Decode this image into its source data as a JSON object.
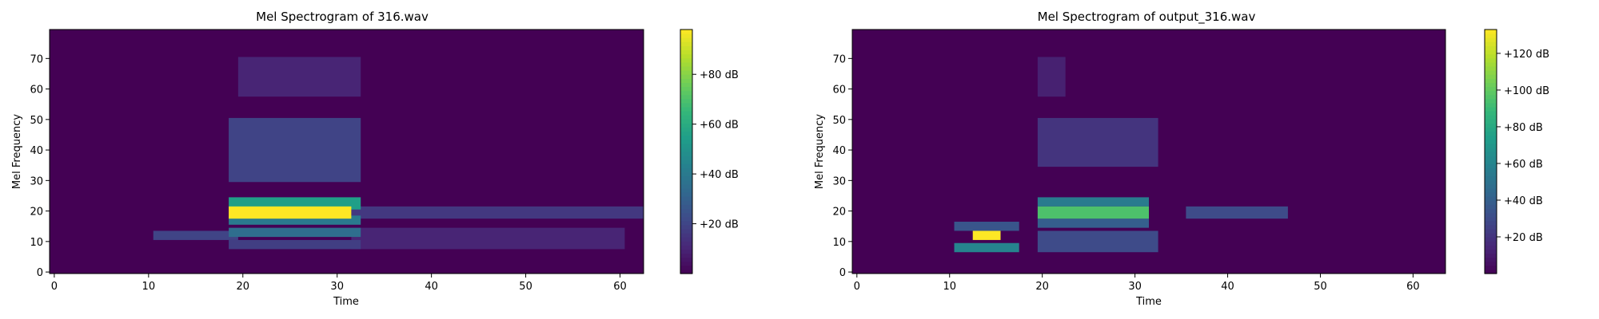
{
  "chart_data": [
    {
      "type": "heatmap",
      "title": "Mel Spectrogram of 316.wav",
      "xlabel": "Time",
      "ylabel": "Mel Frequency",
      "xlim": [
        -0.5,
        62.5
      ],
      "ylim": [
        -0.5,
        79.5
      ],
      "xticks": [
        0,
        10,
        20,
        30,
        40,
        50,
        60
      ],
      "yticks": [
        0,
        10,
        20,
        30,
        40,
        50,
        60,
        70
      ],
      "colorbar": {
        "min": 0,
        "max": 98,
        "ticks": [
          20,
          40,
          60,
          80
        ],
        "tick_labels": [
          "+20 dB",
          "+40 dB",
          "+60 dB",
          "+80 dB"
        ],
        "colormap": "viridis"
      },
      "hotspots": [
        {
          "t0": 19,
          "t1": 31,
          "m0": 18,
          "m1": 21,
          "value": 98
        },
        {
          "t0": 19,
          "t1": 32,
          "m0": 21,
          "m1": 24,
          "value": 55
        },
        {
          "t0": 19,
          "t1": 32,
          "m0": 16,
          "m1": 18,
          "value": 40
        },
        {
          "t0": 19,
          "t1": 32,
          "m0": 12,
          "m1": 14,
          "value": 35
        },
        {
          "t0": 11,
          "t1": 19,
          "m0": 11,
          "m1": 13,
          "value": 20
        },
        {
          "t0": 19,
          "t1": 32,
          "m0": 8,
          "m1": 10,
          "value": 18
        },
        {
          "t0": 19,
          "t1": 32,
          "m0": 30,
          "m1": 50,
          "value": 20
        },
        {
          "t0": 20,
          "t1": 32,
          "m0": 58,
          "m1": 70,
          "value": 10
        },
        {
          "t0": 32,
          "t1": 62,
          "m0": 18,
          "m1": 21,
          "value": 16
        },
        {
          "t0": 32,
          "t1": 60,
          "m0": 8,
          "m1": 14,
          "value": 10
        }
      ]
    },
    {
      "type": "heatmap",
      "title": "Mel Spectrogram of output_316.wav",
      "xlabel": "Time",
      "ylabel": "Mel Frequency",
      "xlim": [
        -0.5,
        63.5
      ],
      "ylim": [
        -0.5,
        79.5
      ],
      "xticks": [
        0,
        10,
        20,
        30,
        40,
        50,
        60
      ],
      "yticks": [
        0,
        10,
        20,
        30,
        40,
        50,
        60,
        70
      ],
      "colorbar": {
        "min": 0,
        "max": 133,
        "ticks": [
          20,
          40,
          60,
          80,
          100,
          120
        ],
        "tick_labels": [
          "+20 dB",
          "+40 dB",
          "+60 dB",
          "+80 dB",
          "+100 dB",
          "+120 dB"
        ],
        "colormap": "viridis"
      },
      "hotspots": [
        {
          "t0": 13,
          "t1": 15,
          "m0": 11,
          "m1": 13,
          "value": 133
        },
        {
          "t0": 11,
          "t1": 17,
          "m0": 7,
          "m1": 9,
          "value": 60
        },
        {
          "t0": 11,
          "t1": 17,
          "m0": 14,
          "m1": 16,
          "value": 35
        },
        {
          "t0": 20,
          "t1": 31,
          "m0": 18,
          "m1": 21,
          "value": 95
        },
        {
          "t0": 20,
          "t1": 31,
          "m0": 22,
          "m1": 24,
          "value": 55
        },
        {
          "t0": 20,
          "t1": 31,
          "m0": 15,
          "m1": 17,
          "value": 40
        },
        {
          "t0": 20,
          "t1": 32,
          "m0": 7,
          "m1": 13,
          "value": 30
        },
        {
          "t0": 20,
          "t1": 32,
          "m0": 35,
          "m1": 50,
          "value": 20
        },
        {
          "t0": 20,
          "t1": 22,
          "m0": 58,
          "m1": 70,
          "value": 12
        },
        {
          "t0": 36,
          "t1": 46,
          "m0": 18,
          "m1": 21,
          "value": 30
        }
      ]
    }
  ]
}
